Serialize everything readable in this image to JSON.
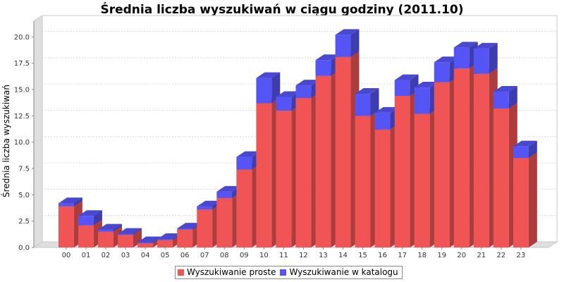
{
  "chart_data": {
    "type": "bar",
    "stacked": true,
    "title": "Średnia liczba wyszukiwań w ciągu godziny (2011.10)",
    "xlabel": "",
    "ylabel": "Średnia liczba wyszukiwań",
    "ylim": [
      0,
      21.5
    ],
    "yticks": [
      "0.0",
      "2.5",
      "5.0",
      "7.5",
      "10.0",
      "12.5",
      "15.0",
      "17.5",
      "20.0"
    ],
    "grid": true,
    "legend_position": "bottom",
    "categories": [
      "00",
      "01",
      "02",
      "03",
      "04",
      "05",
      "06",
      "07",
      "08",
      "09",
      "10",
      "11",
      "12",
      "13",
      "14",
      "15",
      "16",
      "17",
      "18",
      "19",
      "20",
      "21",
      "22",
      "23"
    ],
    "series": [
      {
        "name": "Wyszukiwanie proste",
        "color": "#f05454",
        "values": [
          3.9,
          2.1,
          1.5,
          1.2,
          0.4,
          0.7,
          1.7,
          3.6,
          4.7,
          7.4,
          13.7,
          13.0,
          14.2,
          16.3,
          18.1,
          12.5,
          11.2,
          14.4,
          12.7,
          15.7,
          17.0,
          16.5,
          13.2,
          8.5
        ]
      },
      {
        "name": "Wyszukiwanie w katalogu",
        "color": "#5555f5",
        "values": [
          0.3,
          0.9,
          0.2,
          0.1,
          0.1,
          0.1,
          0.1,
          0.3,
          0.6,
          1.2,
          2.4,
          1.3,
          1.2,
          1.5,
          2.1,
          2.1,
          1.6,
          1.5,
          2.5,
          1.9,
          2.0,
          2.4,
          1.6,
          1.1
        ]
      }
    ]
  }
}
